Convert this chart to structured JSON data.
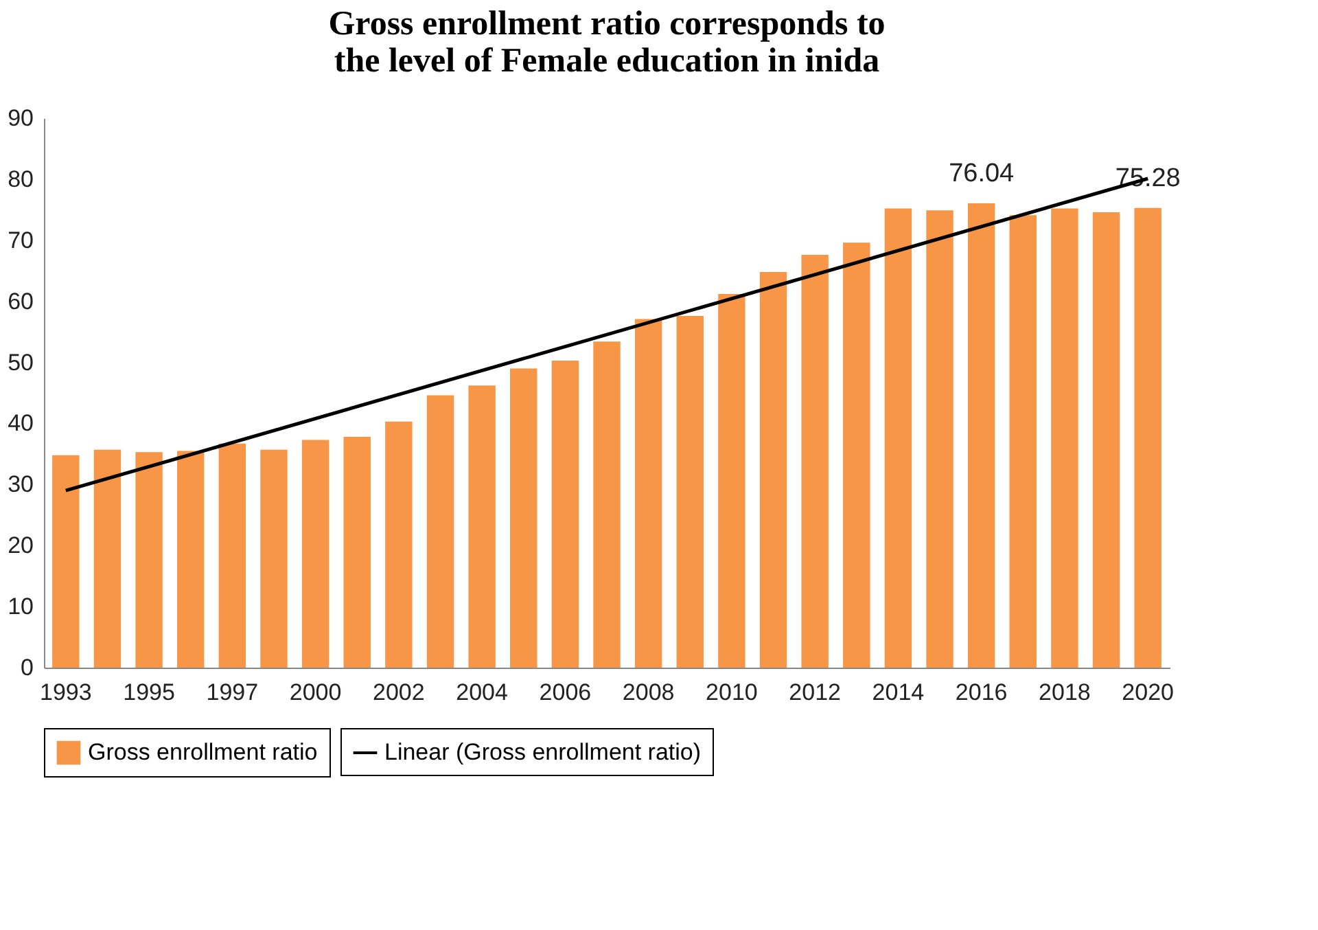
{
  "chart_data": {
    "type": "bar",
    "title": [
      "Gross enrollment ratio corresponds to",
      "the level of  Female education in inida"
    ],
    "categories": [
      "1993",
      null,
      "1995",
      null,
      "1997",
      null,
      "2000",
      null,
      "2002",
      null,
      "2004",
      null,
      "2006",
      null,
      "2008",
      null,
      "2010",
      null,
      "2012",
      null,
      "2014",
      null,
      "2016",
      null,
      "2018",
      null,
      "2020"
    ],
    "series": [
      {
        "name": "Gross enrollment ratio",
        "color": "#f79646",
        "values": [
          34.8,
          35.7,
          35.3,
          35.5,
          36.7,
          35.7,
          37.3,
          37.8,
          40.3,
          44.6,
          46.2,
          49.0,
          50.3,
          53.4,
          57.1,
          57.6,
          61.2,
          64.8,
          67.6,
          69.6,
          75.2,
          74.9,
          76.04,
          74.1,
          75.2,
          74.6,
          75.28
        ],
        "value_labels": [
          null,
          null,
          null,
          null,
          null,
          null,
          null,
          null,
          null,
          null,
          null,
          null,
          null,
          null,
          null,
          null,
          null,
          null,
          null,
          null,
          null,
          null,
          "76.04",
          null,
          null,
          null,
          "75.28"
        ]
      },
      {
        "name": "Linear (Gross enrollment ratio)",
        "type": "line",
        "color": "#000000",
        "values": [
          29.0,
          null,
          null,
          null,
          null,
          null,
          null,
          null,
          null,
          null,
          null,
          null,
          null,
          null,
          null,
          null,
          null,
          null,
          null,
          null,
          null,
          null,
          null,
          null,
          null,
          null,
          80.1
        ]
      }
    ],
    "ylim": [
      0,
      90
    ],
    "yticks": [
      0,
      10,
      20,
      30,
      40,
      50,
      60,
      70,
      80,
      90
    ],
    "grid": false,
    "legend": "bottom"
  }
}
